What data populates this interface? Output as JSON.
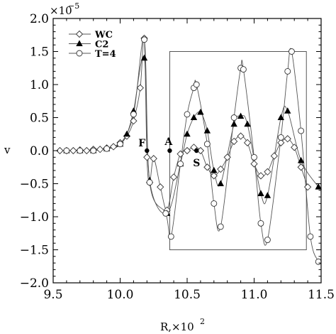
{
  "chart_data": {
    "type": "line",
    "xlabel": "R,×10",
    "xlabel_exp": "2",
    "ylabel": "v",
    "y_scale_prefix": "×10",
    "y_scale_exp": "−5",
    "xlim": [
      9.5,
      11.5
    ],
    "ylim": [
      -2.0,
      2.0
    ],
    "x_ticks": [
      "9.5",
      "10.0",
      "10.5",
      "11.0",
      "11.5"
    ],
    "y_ticks": [
      "2.0",
      "1.5",
      "1.0",
      "0.5",
      "0.0",
      "−0.5",
      "−1.0",
      "−1.5",
      "−2.0"
    ],
    "grid": false,
    "legend_position": "top-left",
    "series": [
      {
        "name": "WC",
        "marker": "diamond",
        "points": [
          [
            9.55,
            0.0
          ],
          [
            9.6,
            0.0
          ],
          [
            9.65,
            0.0
          ],
          [
            9.7,
            0.01
          ],
          [
            9.75,
            0.0
          ],
          [
            9.8,
            0.02
          ],
          [
            9.85,
            0.02
          ],
          [
            9.9,
            0.04
          ],
          [
            9.95,
            0.06
          ],
          [
            10.0,
            0.12
          ],
          [
            10.05,
            0.22
          ],
          [
            10.1,
            0.45
          ],
          [
            10.15,
            0.95
          ],
          [
            10.18,
            1.7
          ],
          [
            10.2,
            -0.1
          ],
          [
            10.22,
            -0.48
          ],
          [
            10.25,
            -0.12
          ],
          [
            10.3,
            -0.55
          ],
          [
            10.35,
            -0.9
          ],
          [
            10.4,
            -0.4
          ],
          [
            10.45,
            -0.05
          ],
          [
            10.5,
            0.0
          ],
          [
            10.55,
            0.05
          ],
          [
            10.6,
            0.0
          ],
          [
            10.65,
            -0.25
          ],
          [
            10.7,
            -0.38
          ],
          [
            10.75,
            -0.28
          ],
          [
            10.8,
            -0.1
          ],
          [
            10.85,
            0.14
          ],
          [
            10.9,
            0.22
          ],
          [
            10.95,
            0.12
          ],
          [
            11.0,
            -0.2
          ],
          [
            11.05,
            -0.38
          ],
          [
            11.1,
            -0.32
          ],
          [
            11.15,
            -0.08
          ],
          [
            11.2,
            0.12
          ],
          [
            11.25,
            0.18
          ],
          [
            11.3,
            0.05
          ],
          [
            11.35,
            -0.25
          ],
          [
            11.4,
            -0.55
          ]
        ]
      },
      {
        "name": "C2",
        "marker": "triangle",
        "points": [
          [
            9.6,
            0.0
          ],
          [
            9.7,
            0.0
          ],
          [
            9.8,
            0.0
          ],
          [
            9.9,
            0.03
          ],
          [
            10.0,
            0.1
          ],
          [
            10.05,
            0.25
          ],
          [
            10.1,
            0.6
          ],
          [
            10.18,
            1.4
          ],
          [
            10.22,
            -0.45
          ],
          [
            10.35,
            -0.95
          ],
          [
            10.45,
            -0.2
          ],
          [
            10.5,
            0.25
          ],
          [
            10.55,
            0.5
          ],
          [
            10.6,
            0.58
          ],
          [
            10.65,
            0.3
          ],
          [
            10.7,
            -0.3
          ],
          [
            10.75,
            -0.5
          ],
          [
            10.85,
            0.4
          ],
          [
            10.9,
            0.52
          ],
          [
            10.95,
            0.4
          ],
          [
            11.05,
            -0.65
          ],
          [
            11.1,
            -0.68
          ],
          [
            11.2,
            0.5
          ],
          [
            11.25,
            0.6
          ],
          [
            11.35,
            -0.15
          ],
          [
            11.48,
            -0.55
          ]
        ]
      },
      {
        "name": "T=4",
        "marker": "circle",
        "points": [
          [
            9.6,
            0.0
          ],
          [
            9.7,
            0.0
          ],
          [
            9.8,
            0.0
          ],
          [
            9.9,
            0.03
          ],
          [
            10.0,
            0.1
          ],
          [
            10.1,
            0.55
          ],
          [
            10.18,
            1.68
          ],
          [
            10.22,
            -0.48
          ],
          [
            10.34,
            -0.95
          ],
          [
            10.38,
            -1.3
          ],
          [
            10.45,
            -0.2
          ],
          [
            10.5,
            0.55
          ],
          [
            10.55,
            0.95
          ],
          [
            10.57,
            1.0
          ],
          [
            10.65,
            0.1
          ],
          [
            10.7,
            -0.8
          ],
          [
            10.75,
            -1.15
          ],
          [
            10.85,
            0.5
          ],
          [
            10.9,
            1.25
          ],
          [
            10.92,
            1.23
          ],
          [
            11.0,
            -0.1
          ],
          [
            11.05,
            -1.1
          ],
          [
            11.1,
            -1.35
          ],
          [
            11.2,
            0.2
          ],
          [
            11.25,
            1.2
          ],
          [
            11.28,
            1.5
          ],
          [
            11.35,
            0.3
          ],
          [
            11.42,
            -1.3
          ],
          [
            11.48,
            -1.68
          ]
        ]
      }
    ],
    "annotations": [
      {
        "label": "F",
        "x": 10.2,
        "y": 0.0,
        "dot": true
      },
      {
        "label": "A",
        "x": 10.37,
        "y": 0.0,
        "dot": true
      },
      {
        "label": "S",
        "x": 10.57,
        "y": 0.0,
        "dot": true
      }
    ],
    "zoom_box": {
      "x": [
        10.37,
        11.39
      ],
      "y": [
        -1.5,
        1.5
      ]
    }
  }
}
